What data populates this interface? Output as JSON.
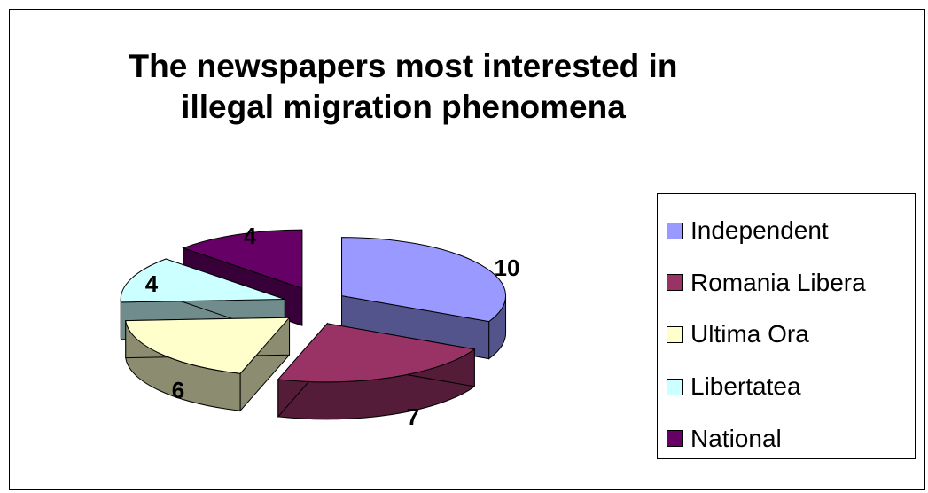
{
  "chart_data": {
    "type": "pie",
    "title_lines": [
      "The newspapers most interested in",
      "illegal migration phenomena"
    ],
    "categories": [
      "Independent",
      "Romania Libera",
      "Ultima Ora",
      "Libertatea",
      "National"
    ],
    "values": [
      10,
      7,
      6,
      4,
      4
    ],
    "data_labels": [
      "10",
      "7",
      "6",
      "4",
      "4"
    ],
    "colors": [
      "#9999ff",
      "#993366",
      "#ffffcc",
      "#ccffff",
      "#660066"
    ],
    "exploded": true,
    "three_d": true,
    "legend_position": "right"
  }
}
